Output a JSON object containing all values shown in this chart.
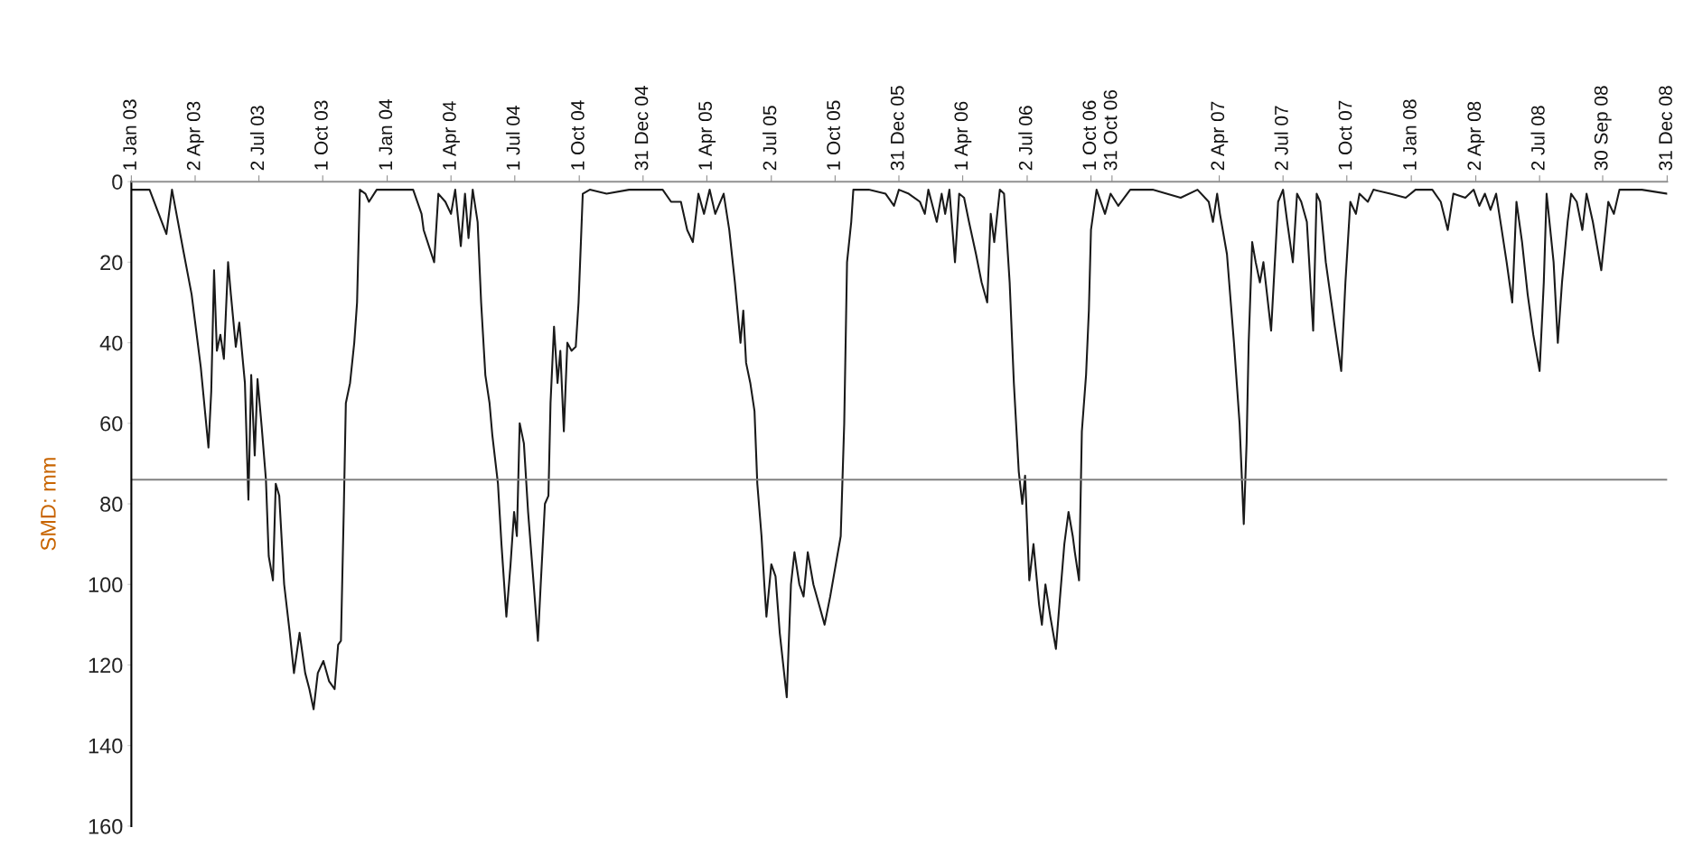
{
  "chart_data": {
    "type": "line",
    "ylabel": "SMD: mm",
    "xlim": [
      "2003-01-01",
      "2008-12-31"
    ],
    "ylim": [
      160,
      0
    ],
    "yticks": [
      0,
      20,
      40,
      60,
      80,
      100,
      120,
      140,
      160
    ],
    "xticks": [
      {
        "value": "2003-01-01",
        "label": "1 Jan 03"
      },
      {
        "value": "2003-04-02",
        "label": "2 Apr 03"
      },
      {
        "value": "2003-07-02",
        "label": "2 Jul 03"
      },
      {
        "value": "2003-10-01",
        "label": "1 Oct 03"
      },
      {
        "value": "2004-01-01",
        "label": "1 Jan 04"
      },
      {
        "value": "2004-04-01",
        "label": "1 Apr 04"
      },
      {
        "value": "2004-07-01",
        "label": "1 Jul 04"
      },
      {
        "value": "2004-10-01",
        "label": "1 Oct 04"
      },
      {
        "value": "2004-12-31",
        "label": "31 Dec 04"
      },
      {
        "value": "2005-04-01",
        "label": "1 Apr 05"
      },
      {
        "value": "2005-07-02",
        "label": "2 Jul 05"
      },
      {
        "value": "2005-10-01",
        "label": "1 Oct 05"
      },
      {
        "value": "2005-12-31",
        "label": "31 Dec 05"
      },
      {
        "value": "2006-04-01",
        "label": "1 Apr 06"
      },
      {
        "value": "2006-07-02",
        "label": "2 Jul 06"
      },
      {
        "value": "2006-10-01",
        "label": "1 Oct 06"
      },
      {
        "value": "2006-10-31",
        "label": "31 Oct 06"
      },
      {
        "value": "2007-04-02",
        "label": "2 Apr 07"
      },
      {
        "value": "2007-07-02",
        "label": "2 Jul 07"
      },
      {
        "value": "2007-10-01",
        "label": "1 Oct 07"
      },
      {
        "value": "2008-01-01",
        "label": "1 Jan 08"
      },
      {
        "value": "2008-04-02",
        "label": "2 Apr 08"
      },
      {
        "value": "2008-07-02",
        "label": "2 Jul 08"
      },
      {
        "value": "2008-09-30",
        "label": "30 Sep 08"
      },
      {
        "value": "2008-12-31",
        "label": "31 Dec 08"
      }
    ],
    "grid": false,
    "legend": false,
    "marker": "none",
    "line_style": "solid",
    "ref_lines": [
      {
        "axis": "y",
        "value": 74,
        "color": "#808080"
      }
    ],
    "series": [
      {
        "color": "#1a1a1a",
        "x": [
          "2003-01-01",
          "2003-01-27",
          "2003-02-20",
          "2003-02-28",
          "2003-03-16",
          "2003-03-28",
          "2003-04-10",
          "2003-04-21",
          "2003-04-25",
          "2003-04-29",
          "2003-05-03",
          "2003-05-08",
          "2003-05-13",
          "2003-05-19",
          "2003-05-23",
          "2003-05-30",
          "2003-06-04",
          "2003-06-12",
          "2003-06-17",
          "2003-06-21",
          "2003-06-26",
          "2003-06-30",
          "2003-07-06",
          "2003-07-12",
          "2003-07-16",
          "2003-07-22",
          "2003-07-26",
          "2003-07-31",
          "2003-08-07",
          "2003-08-15",
          "2003-08-21",
          "2003-08-29",
          "2003-09-06",
          "2003-09-12",
          "2003-09-18",
          "2003-09-24",
          "2003-10-02",
          "2003-10-10",
          "2003-10-18",
          "2003-10-23",
          "2003-10-27",
          "2003-10-31",
          "2003-11-03",
          "2003-11-09",
          "2003-11-15",
          "2003-11-19",
          "2003-11-23",
          "2003-12-01",
          "2003-12-06",
          "2003-12-17",
          "2004-01-01",
          "2004-02-07",
          "2004-02-19",
          "2004-02-22",
          "2004-03-08",
          "2004-03-14",
          "2004-03-24",
          "2004-04-01",
          "2004-04-07",
          "2004-04-15",
          "2004-04-21",
          "2004-04-26",
          "2004-05-02",
          "2004-05-09",
          "2004-05-14",
          "2004-05-20",
          "2004-05-26",
          "2004-05-30",
          "2004-06-07",
          "2004-06-12",
          "2004-06-19",
          "2004-06-25",
          "2004-06-30",
          "2004-07-04",
          "2004-07-08",
          "2004-07-14",
          "2004-07-20",
          "2004-07-28",
          "2004-08-03",
          "2004-08-07",
          "2004-08-13",
          "2004-08-18",
          "2004-08-21",
          "2004-08-26",
          "2004-08-31",
          "2004-09-04",
          "2004-09-09",
          "2004-09-14",
          "2004-09-20",
          "2004-09-26",
          "2004-09-30",
          "2004-10-06",
          "2004-10-16",
          "2004-11-09",
          "2004-12-11",
          "2004-12-31",
          "2005-01-28",
          "2005-02-09",
          "2005-02-23",
          "2005-03-04",
          "2005-03-12",
          "2005-03-20",
          "2005-03-28",
          "2005-04-05",
          "2005-04-13",
          "2005-04-25",
          "2005-05-03",
          "2005-05-11",
          "2005-05-19",
          "2005-05-23",
          "2005-05-27",
          "2005-06-02",
          "2005-06-08",
          "2005-06-12",
          "2005-06-18",
          "2005-06-22",
          "2005-06-25",
          "2005-07-02",
          "2005-07-08",
          "2005-07-14",
          "2005-07-24",
          "2005-07-30",
          "2005-08-04",
          "2005-08-11",
          "2005-08-17",
          "2005-08-23",
          "2005-08-31",
          "2005-09-08",
          "2005-09-16",
          "2005-09-24",
          "2005-10-02",
          "2005-10-09",
          "2005-10-14",
          "2005-10-18",
          "2005-10-24",
          "2005-10-27",
          "2005-11-18",
          "2005-12-12",
          "2005-12-24",
          "2005-12-31",
          "2006-01-14",
          "2006-01-30",
          "2006-02-06",
          "2006-02-11",
          "2006-02-23",
          "2006-03-02",
          "2006-03-07",
          "2006-03-13",
          "2006-03-21",
          "2006-03-27",
          "2006-04-03",
          "2006-04-10",
          "2006-04-20",
          "2006-04-28",
          "2006-05-06",
          "2006-05-11",
          "2006-05-16",
          "2006-05-24",
          "2006-05-30",
          "2006-06-07",
          "2006-06-13",
          "2006-06-20",
          "2006-06-25",
          "2006-06-29",
          "2006-07-05",
          "2006-07-11",
          "2006-07-19",
          "2006-07-23",
          "2006-07-28",
          "2006-08-04",
          "2006-08-12",
          "2006-08-17",
          "2006-08-24",
          "2006-08-30",
          "2006-09-05",
          "2006-09-08",
          "2006-09-14",
          "2006-09-18",
          "2006-09-24",
          "2006-09-28",
          "2006-10-01",
          "2006-10-09",
          "2006-10-21",
          "2006-10-29",
          "2006-11-09",
          "2006-11-26",
          "2006-12-28",
          "2007-02-06",
          "2007-03-02",
          "2007-03-18",
          "2007-03-24",
          "2007-03-30",
          "2007-04-03",
          "2007-04-13",
          "2007-04-23",
          "2007-05-01",
          "2007-05-07",
          "2007-05-11",
          "2007-05-14",
          "2007-05-19",
          "2007-05-24",
          "2007-05-30",
          "2007-06-04",
          "2007-06-15",
          "2007-06-25",
          "2007-07-02",
          "2007-07-08",
          "2007-07-16",
          "2007-07-22",
          "2007-07-28",
          "2007-08-05",
          "2007-08-14",
          "2007-08-19",
          "2007-08-24",
          "2007-09-01",
          "2007-09-13",
          "2007-09-23",
          "2007-09-29",
          "2007-10-06",
          "2007-10-14",
          "2007-10-19",
          "2007-10-31",
          "2007-11-08",
          "2007-12-02",
          "2007-12-24",
          "2008-01-07",
          "2008-01-31",
          "2008-02-12",
          "2008-02-22",
          "2008-03-01",
          "2008-03-18",
          "2008-03-30",
          "2008-04-07",
          "2008-04-15",
          "2008-04-23",
          "2008-05-01",
          "2008-05-09",
          "2008-05-16",
          "2008-05-24",
          "2008-05-30",
          "2008-06-07",
          "2008-06-15",
          "2008-06-23",
          "2008-07-02",
          "2008-07-08",
          "2008-07-12",
          "2008-07-22",
          "2008-07-28",
          "2008-08-03",
          "2008-08-11",
          "2008-08-16",
          "2008-08-24",
          "2008-09-01",
          "2008-09-07",
          "2008-09-16",
          "2008-09-28",
          "2008-10-08",
          "2008-10-16",
          "2008-10-24",
          "2008-11-25",
          "2008-12-31"
        ],
        "values": [
          2,
          2,
          13,
          2,
          17,
          28,
          46,
          66,
          52,
          22,
          42,
          38,
          44,
          20,
          28,
          41,
          35,
          50,
          79,
          48,
          68,
          49,
          61,
          74,
          93,
          99,
          75,
          78,
          100,
          112,
          122,
          112,
          122,
          126,
          131,
          122,
          119,
          124,
          126,
          115,
          114,
          82,
          55,
          50,
          40,
          30,
          2,
          3,
          5,
          2,
          2,
          2,
          8,
          12,
          20,
          3,
          5,
          8,
          2,
          16,
          3,
          14,
          2,
          10,
          30,
          48,
          55,
          63,
          75,
          90,
          108,
          95,
          82,
          88,
          60,
          65,
          82,
          100,
          114,
          100,
          80,
          78,
          55,
          36,
          50,
          42,
          62,
          40,
          42,
          41,
          30,
          3,
          2,
          3,
          2,
          2,
          2,
          5,
          5,
          12,
          15,
          3,
          8,
          2,
          8,
          3,
          12,
          25,
          40,
          32,
          45,
          50,
          57,
          75,
          88,
          100,
          108,
          95,
          98,
          112,
          128,
          100,
          92,
          100,
          103,
          92,
          100,
          105,
          110,
          103,
          95,
          88,
          60,
          20,
          10,
          2,
          2,
          3,
          6,
          2,
          3,
          5,
          8,
          2,
          10,
          3,
          8,
          2,
          20,
          3,
          4,
          10,
          18,
          25,
          30,
          8,
          15,
          2,
          3,
          25,
          50,
          72,
          80,
          73,
          99,
          90,
          105,
          110,
          100,
          108,
          116,
          105,
          90,
          82,
          88,
          92,
          99,
          62,
          48,
          32,
          12,
          2,
          8,
          3,
          6,
          2,
          2,
          4,
          2,
          5,
          10,
          3,
          8,
          18,
          40,
          60,
          85,
          65,
          40,
          15,
          20,
          25,
          20,
          37,
          5,
          2,
          10,
          20,
          3,
          5,
          10,
          37,
          3,
          5,
          20,
          35,
          47,
          25,
          5,
          8,
          3,
          5,
          2,
          3,
          4,
          2,
          2,
          5,
          12,
          3,
          4,
          2,
          6,
          3,
          7,
          3,
          12,
          20,
          30,
          5,
          15,
          28,
          38,
          47,
          25,
          3,
          20,
          40,
          25,
          10,
          3,
          5,
          12,
          3,
          10,
          22,
          5,
          8,
          2,
          2,
          3
        ]
      }
    ]
  }
}
